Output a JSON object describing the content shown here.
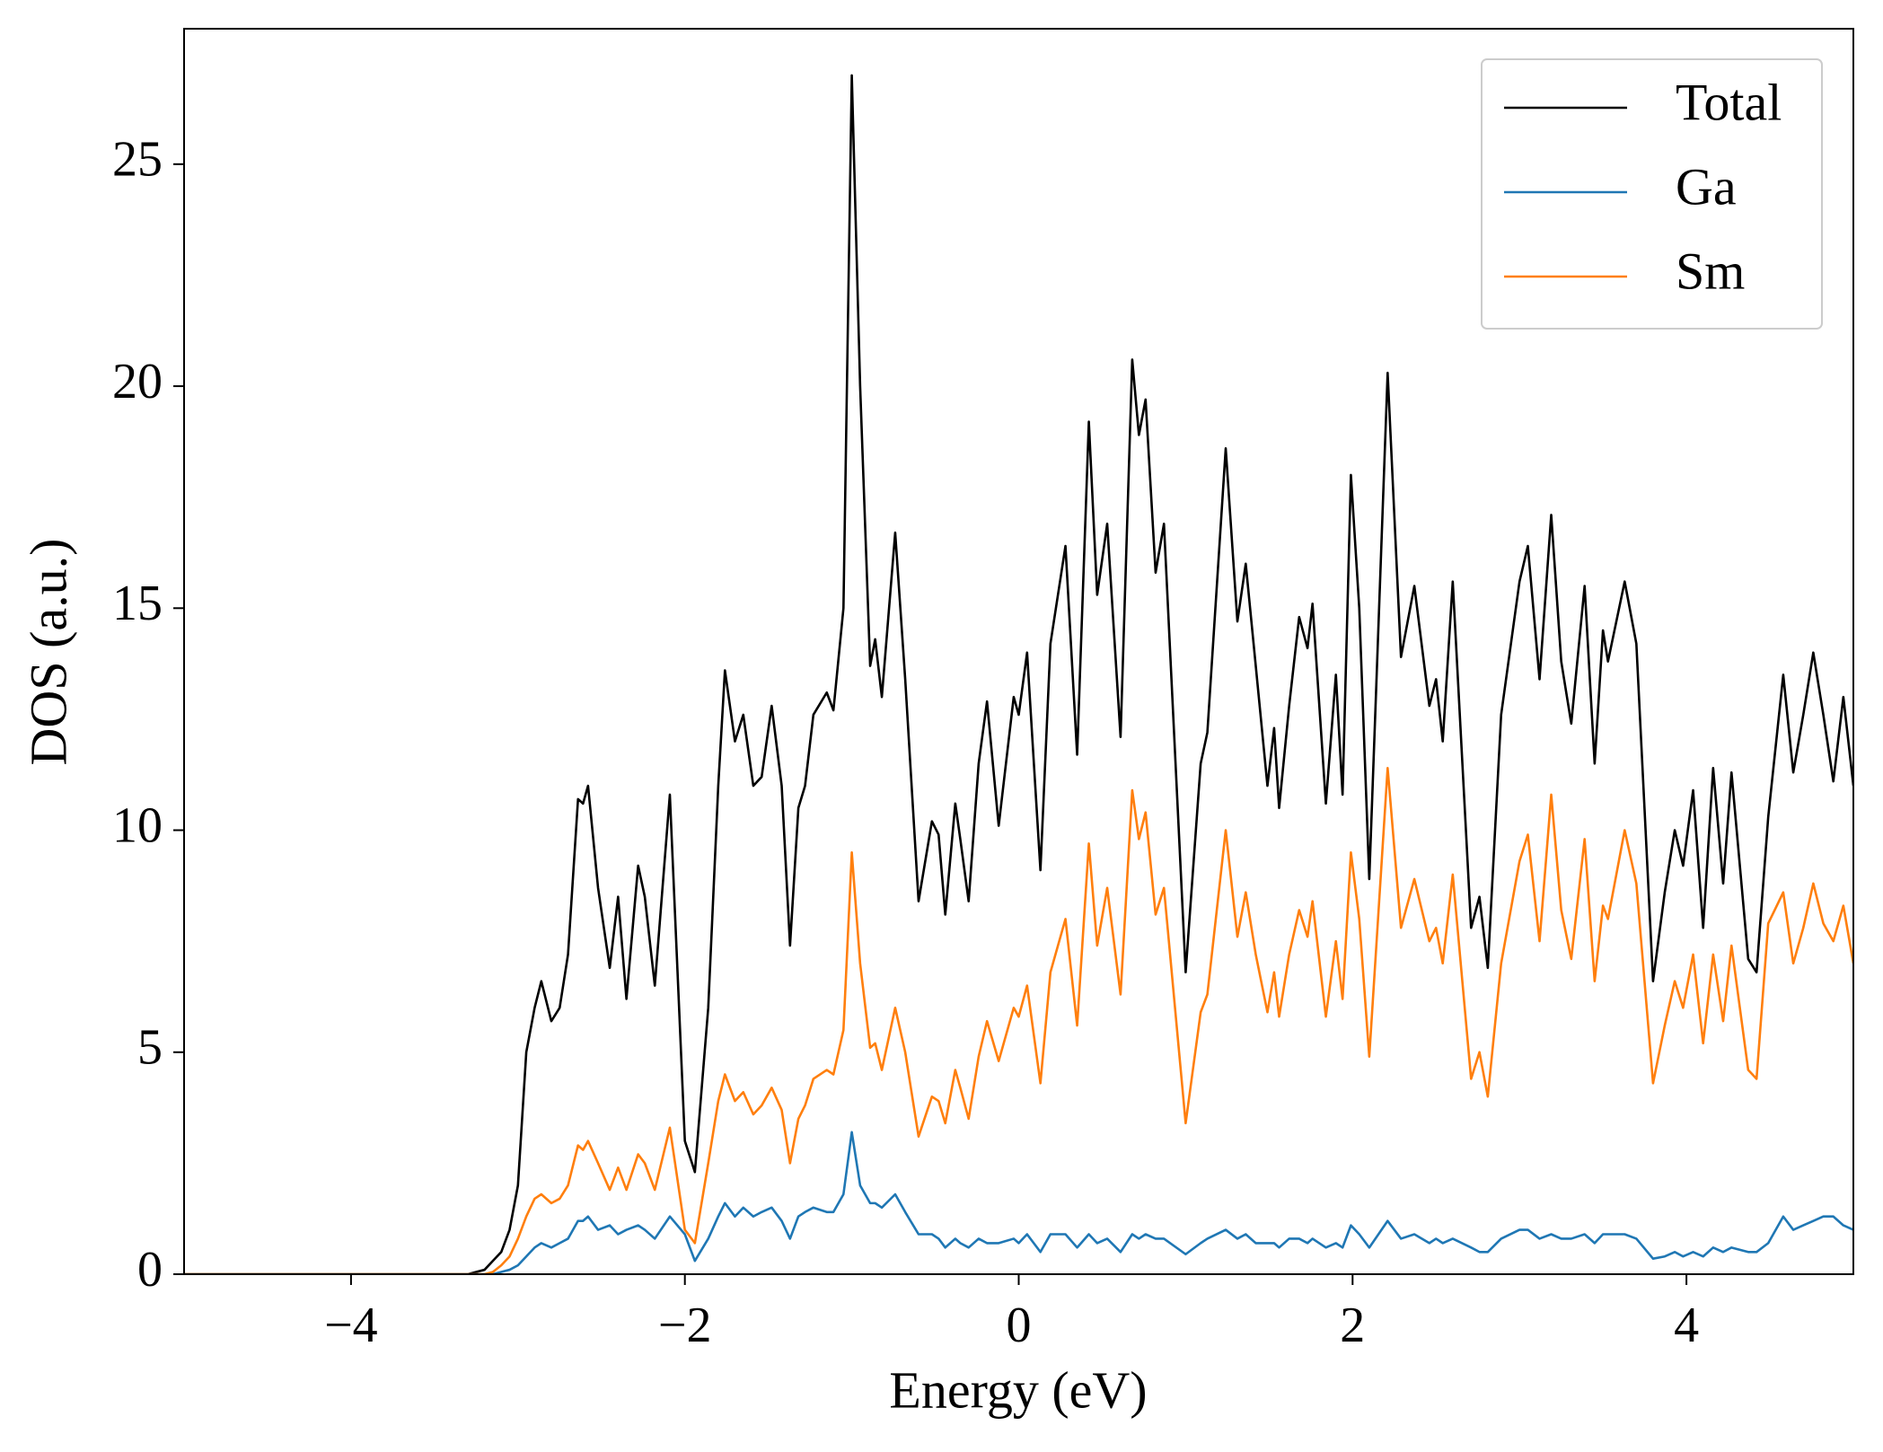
{
  "chart_data": {
    "type": "line",
    "xlabel": "Energy (eV)",
    "ylabel": "DOS (a.u.)",
    "xlim": [
      -5,
      5
    ],
    "ylim": [
      0,
      28.05
    ],
    "xticks": [
      {
        "value": -4,
        "label": "−4"
      },
      {
        "value": -2,
        "label": "−2"
      },
      0,
      2,
      4
    ],
    "yticks": [
      0,
      5,
      10,
      15,
      20,
      25
    ],
    "legend": "upper right",
    "grid": false,
    "x": [
      -5,
      -3.3,
      -3.2,
      -3.15,
      -3.1,
      -3.05,
      -3.0,
      -2.95,
      -2.9,
      -2.86,
      -2.8,
      -2.75,
      -2.7,
      -2.64,
      -2.61,
      -2.58,
      -2.52,
      -2.45,
      -2.4,
      -2.35,
      -2.28,
      -2.24,
      -2.18,
      -2.09,
      -2.0,
      -1.94,
      -1.86,
      -1.8,
      -1.76,
      -1.7,
      -1.65,
      -1.59,
      -1.54,
      -1.48,
      -1.42,
      -1.37,
      -1.32,
      -1.28,
      -1.23,
      -1.15,
      -1.11,
      -1.05,
      -1.0,
      -0.95,
      -0.89,
      -0.86,
      -0.82,
      -0.74,
      -0.68,
      -0.6,
      -0.52,
      -0.48,
      -0.44,
      -0.38,
      -0.35,
      -0.3,
      -0.24,
      -0.19,
      -0.12,
      -0.03,
      0.0,
      0.05,
      0.13,
      0.19,
      0.28,
      0.35,
      0.42,
      0.47,
      0.53,
      0.61,
      0.68,
      0.72,
      0.76,
      0.82,
      0.87,
      1.0,
      1.09,
      1.13,
      1.24,
      1.31,
      1.36,
      1.42,
      1.49,
      1.53,
      1.56,
      1.62,
      1.68,
      1.73,
      1.76,
      1.84,
      1.9,
      1.94,
      1.99,
      2.04,
      2.1,
      2.21,
      2.29,
      2.37,
      2.46,
      2.5,
      2.54,
      2.6,
      2.71,
      2.76,
      2.81,
      2.89,
      3.0,
      3.05,
      3.12,
      3.19,
      3.25,
      3.31,
      3.39,
      3.45,
      3.5,
      3.53,
      3.63,
      3.7,
      3.8,
      3.87,
      3.93,
      3.98,
      4.04,
      4.1,
      4.16,
      4.22,
      4.27,
      4.37,
      4.42,
      4.49,
      4.58,
      4.64,
      4.7,
      4.76,
      4.82,
      4.88,
      4.94,
      5.0
    ],
    "series": [
      {
        "name": "Total",
        "color": "#000000",
        "values": [
          0,
          0,
          0.1,
          0.3,
          0.5,
          1.0,
          2.0,
          5.0,
          6.0,
          6.6,
          5.7,
          6.0,
          7.2,
          10.7,
          10.6,
          11.0,
          8.7,
          6.9,
          8.5,
          6.2,
          9.2,
          8.5,
          6.5,
          10.8,
          3.0,
          2.3,
          6.0,
          11.0,
          13.6,
          12.0,
          12.6,
          11.0,
          11.2,
          12.8,
          11.0,
          7.4,
          10.5,
          11.0,
          12.6,
          13.1,
          12.7,
          15.0,
          27.0,
          20.0,
          13.7,
          14.3,
          13.0,
          16.7,
          13.4,
          8.4,
          10.2,
          9.9,
          8.1,
          10.6,
          9.8,
          8.4,
          11.5,
          12.9,
          10.1,
          13.0,
          12.6,
          14.0,
          9.1,
          14.2,
          16.4,
          11.7,
          19.2,
          15.3,
          16.9,
          12.1,
          20.6,
          18.9,
          19.7,
          15.8,
          16.9,
          6.8,
          11.5,
          12.2,
          18.6,
          14.7,
          16.0,
          13.7,
          11.0,
          12.3,
          10.5,
          12.8,
          14.8,
          14.1,
          15.1,
          10.6,
          13.5,
          10.8,
          18.0,
          15.0,
          8.9,
          20.3,
          13.9,
          15.5,
          12.8,
          13.4,
          12.0,
          15.6,
          7.8,
          8.5,
          6.9,
          12.6,
          15.6,
          16.4,
          13.4,
          17.1,
          13.8,
          12.4,
          15.5,
          11.5,
          14.5,
          13.8,
          15.6,
          14.2,
          6.6,
          8.6,
          10.0,
          9.2,
          10.9,
          7.8,
          11.4,
          8.8,
          11.3,
          7.1,
          6.8,
          10.3,
          13.5,
          11.3,
          12.6,
          14.0,
          12.6,
          11.1,
          13.0,
          11.0
        ]
      },
      {
        "name": "Ga",
        "color": "#1f77b4",
        "values": [
          0,
          0,
          0,
          0,
          0.05,
          0.1,
          0.2,
          0.4,
          0.6,
          0.7,
          0.6,
          0.7,
          0.8,
          1.2,
          1.2,
          1.3,
          1.0,
          1.1,
          0.9,
          1.0,
          1.1,
          1.0,
          0.8,
          1.3,
          0.9,
          0.3,
          0.8,
          1.3,
          1.6,
          1.3,
          1.5,
          1.3,
          1.4,
          1.5,
          1.2,
          0.8,
          1.3,
          1.4,
          1.5,
          1.4,
          1.4,
          1.8,
          3.2,
          2.0,
          1.6,
          1.6,
          1.5,
          1.8,
          1.4,
          0.9,
          0.9,
          0.8,
          0.6,
          0.8,
          0.7,
          0.6,
          0.8,
          0.7,
          0.7,
          0.8,
          0.7,
          0.9,
          0.5,
          0.9,
          0.9,
          0.6,
          0.9,
          0.7,
          0.8,
          0.5,
          0.9,
          0.8,
          0.9,
          0.8,
          0.8,
          0.45,
          0.7,
          0.8,
          1.0,
          0.8,
          0.9,
          0.7,
          0.7,
          0.7,
          0.6,
          0.8,
          0.8,
          0.7,
          0.8,
          0.6,
          0.7,
          0.6,
          1.1,
          0.9,
          0.6,
          1.2,
          0.8,
          0.9,
          0.7,
          0.8,
          0.7,
          0.8,
          0.6,
          0.5,
          0.5,
          0.8,
          1.0,
          1.0,
          0.8,
          0.9,
          0.8,
          0.8,
          0.9,
          0.7,
          0.9,
          0.9,
          0.9,
          0.8,
          0.35,
          0.4,
          0.5,
          0.4,
          0.5,
          0.4,
          0.6,
          0.5,
          0.6,
          0.5,
          0.5,
          0.7,
          1.3,
          1.0,
          1.1,
          1.2,
          1.3,
          1.3,
          1.1,
          1.0
        ]
      },
      {
        "name": "Sm",
        "color": "#ff7f0e",
        "values": [
          0,
          0,
          0,
          0.05,
          0.2,
          0.4,
          0.8,
          1.3,
          1.7,
          1.8,
          1.6,
          1.7,
          2.0,
          2.9,
          2.8,
          3.0,
          2.5,
          1.9,
          2.4,
          1.9,
          2.7,
          2.5,
          1.9,
          3.3,
          1.0,
          0.7,
          2.5,
          3.9,
          4.5,
          3.9,
          4.1,
          3.6,
          3.8,
          4.2,
          3.7,
          2.5,
          3.5,
          3.8,
          4.4,
          4.6,
          4.5,
          5.5,
          9.5,
          7.0,
          5.1,
          5.2,
          4.6,
          6.0,
          5.0,
          3.1,
          4.0,
          3.9,
          3.4,
          4.6,
          4.2,
          3.5,
          4.9,
          5.7,
          4.8,
          6.0,
          5.8,
          6.5,
          4.3,
          6.8,
          8.0,
          5.6,
          9.7,
          7.4,
          8.7,
          6.3,
          10.9,
          9.8,
          10.4,
          8.1,
          8.7,
          3.4,
          5.9,
          6.3,
          10.0,
          7.6,
          8.6,
          7.2,
          5.9,
          6.8,
          5.8,
          7.2,
          8.2,
          7.6,
          8.4,
          5.8,
          7.5,
          6.2,
          9.5,
          8.0,
          4.9,
          11.4,
          7.8,
          8.9,
          7.5,
          7.8,
          7.0,
          9.0,
          4.4,
          5.0,
          4.0,
          7.0,
          9.3,
          9.9,
          7.5,
          10.8,
          8.2,
          7.1,
          9.8,
          6.6,
          8.3,
          8.0,
          10.0,
          8.8,
          4.3,
          5.6,
          6.6,
          6.0,
          7.2,
          5.2,
          7.2,
          5.7,
          7.4,
          4.6,
          4.4,
          7.9,
          8.6,
          7.0,
          7.8,
          8.8,
          7.9,
          7.5,
          8.3,
          7.0
        ]
      }
    ]
  }
}
